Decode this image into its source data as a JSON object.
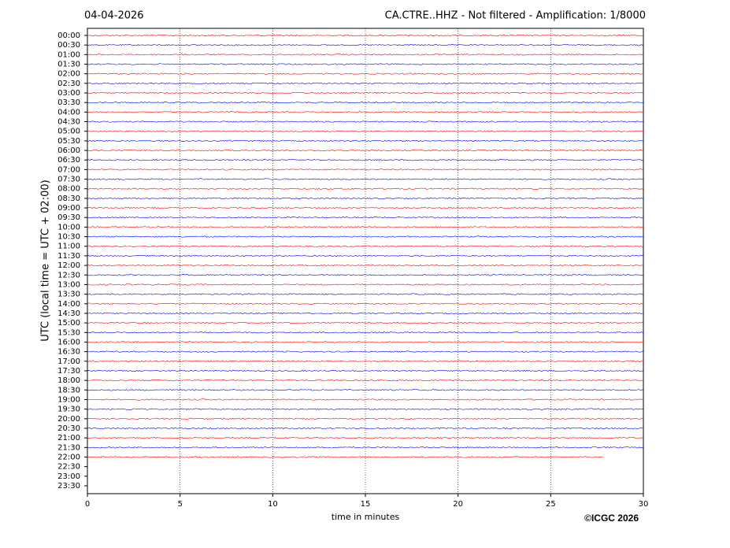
{
  "chart_data": {
    "type": "helicorder",
    "title_left": "04-04-2026",
    "title": "CA.CTRE..HHZ - Not filtered - Amplification: 1/8000",
    "ylabel": "UTC (local time = UTC + 02:00)",
    "xlabel": "time in minutes",
    "credit": "©ICGC 2026",
    "xlim": [
      0,
      30
    ],
    "xticks": [
      0,
      5,
      10,
      15,
      20,
      25,
      30
    ],
    "grid": true,
    "colors": [
      "#ff0000",
      "#0000ff"
    ],
    "categories": [
      "00:00",
      "00:30",
      "01:00",
      "01:30",
      "02:00",
      "02:30",
      "03:00",
      "03:30",
      "04:00",
      "04:30",
      "05:00",
      "05:30",
      "06:00",
      "06:30",
      "07:00",
      "07:30",
      "08:00",
      "08:30",
      "09:00",
      "09:30",
      "10:00",
      "10:30",
      "11:00",
      "11:30",
      "12:00",
      "12:30",
      "13:00",
      "13:30",
      "14:00",
      "14:30",
      "15:00",
      "15:30",
      "16:00",
      "16:30",
      "17:00",
      "17:30",
      "18:00",
      "18:30",
      "19:00",
      "19:30",
      "20:00",
      "20:30",
      "21:00",
      "21:30",
      "22:00",
      "22:30",
      "23:00",
      "23:30"
    ],
    "trace_end": [
      30,
      30,
      30,
      30,
      30,
      30,
      30,
      30,
      30,
      30,
      30,
      30,
      30,
      30,
      30,
      30,
      30,
      30,
      30,
      30,
      30,
      30,
      30,
      30,
      30,
      30,
      30,
      30,
      30,
      30,
      30,
      30,
      30,
      30,
      30,
      30,
      30,
      30,
      30,
      30,
      30,
      30,
      30,
      30,
      27.8,
      null,
      null,
      null
    ]
  }
}
